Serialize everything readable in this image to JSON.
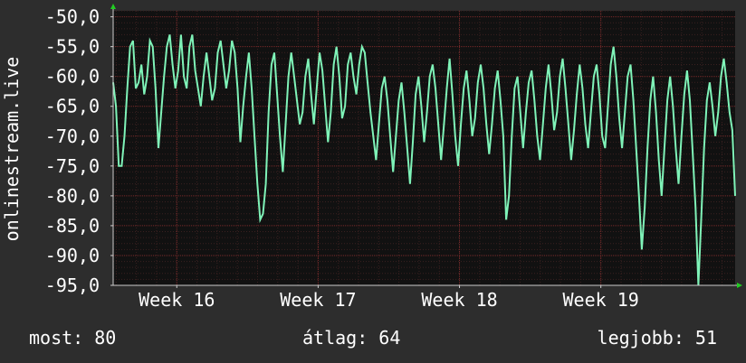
{
  "chart_data": {
    "type": "line",
    "ylabel": "onlinestream.live",
    "ylim": [
      -95,
      -49
    ],
    "y_ticks": [
      -50,
      -55,
      -60,
      -65,
      -70,
      -75,
      -80,
      -85,
      -90,
      -95
    ],
    "y_tick_labels": [
      "-50,0",
      "-55,0",
      "-60,0",
      "-65,0",
      "-70,0",
      "-75,0",
      "-80,0",
      "-85,0",
      "-90,0",
      "-95,0"
    ],
    "x_range_weeks": [
      15.55,
      19.95
    ],
    "x_ticks": [
      16,
      17,
      18,
      19
    ],
    "x_tick_labels": [
      "Week 16",
      "Week 17",
      "Week 18",
      "Week 19"
    ],
    "grid": true,
    "line_color": "#7ff3b8",
    "grid_color": "#7a2a2a",
    "plot_background": "#111111",
    "series": [
      {
        "values": [
          [
            15.55,
            -61
          ],
          [
            15.57,
            -65
          ],
          [
            15.59,
            -75
          ],
          [
            15.61,
            -75
          ],
          [
            15.63,
            -70
          ],
          [
            15.65,
            -62
          ],
          [
            15.67,
            -55
          ],
          [
            15.69,
            -54
          ],
          [
            15.71,
            -62
          ],
          [
            15.73,
            -61
          ],
          [
            15.75,
            -58
          ],
          [
            15.77,
            -63
          ],
          [
            15.79,
            -60
          ],
          [
            15.81,
            -54
          ],
          [
            15.83,
            -55
          ],
          [
            15.85,
            -62
          ],
          [
            15.87,
            -72
          ],
          [
            15.89,
            -66
          ],
          [
            15.91,
            -60
          ],
          [
            15.93,
            -55
          ],
          [
            15.95,
            -53
          ],
          [
            15.97,
            -58
          ],
          [
            15.99,
            -62
          ],
          [
            16.01,
            -59
          ],
          [
            16.03,
            -53
          ],
          [
            16.05,
            -60
          ],
          [
            16.07,
            -62
          ],
          [
            16.09,
            -55
          ],
          [
            16.11,
            -53
          ],
          [
            16.13,
            -59
          ],
          [
            16.15,
            -62
          ],
          [
            16.17,
            -65
          ],
          [
            16.19,
            -60
          ],
          [
            16.21,
            -56
          ],
          [
            16.23,
            -60
          ],
          [
            16.25,
            -64
          ],
          [
            16.27,
            -62
          ],
          [
            16.29,
            -56
          ],
          [
            16.31,
            -54
          ],
          [
            16.33,
            -58
          ],
          [
            16.35,
            -62
          ],
          [
            16.37,
            -59
          ],
          [
            16.39,
            -54
          ],
          [
            16.41,
            -56
          ],
          [
            16.43,
            -62
          ],
          [
            16.45,
            -71
          ],
          [
            16.47,
            -65
          ],
          [
            16.49,
            -60
          ],
          [
            16.51,
            -56
          ],
          [
            16.53,
            -62
          ],
          [
            16.55,
            -70
          ],
          [
            16.57,
            -78
          ],
          [
            16.59,
            -84
          ],
          [
            16.61,
            -83
          ],
          [
            16.63,
            -78
          ],
          [
            16.65,
            -66
          ],
          [
            16.67,
            -58
          ],
          [
            16.69,
            -56
          ],
          [
            16.71,
            -63
          ],
          [
            16.73,
            -70
          ],
          [
            16.75,
            -76
          ],
          [
            16.77,
            -68
          ],
          [
            16.79,
            -60
          ],
          [
            16.81,
            -56
          ],
          [
            16.83,
            -60
          ],
          [
            16.85,
            -64
          ],
          [
            16.87,
            -68
          ],
          [
            16.89,
            -66
          ],
          [
            16.91,
            -60
          ],
          [
            16.93,
            -57
          ],
          [
            16.95,
            -63
          ],
          [
            16.97,
            -68
          ],
          [
            16.99,
            -62
          ],
          [
            17.01,
            -56
          ],
          [
            17.03,
            -59
          ],
          [
            17.05,
            -65
          ],
          [
            17.07,
            -71
          ],
          [
            17.09,
            -66
          ],
          [
            17.11,
            -58
          ],
          [
            17.13,
            -55
          ],
          [
            17.15,
            -60
          ],
          [
            17.17,
            -67
          ],
          [
            17.19,
            -65
          ],
          [
            17.21,
            -58
          ],
          [
            17.23,
            -56
          ],
          [
            17.25,
            -60
          ],
          [
            17.27,
            -63
          ],
          [
            17.29,
            -58
          ],
          [
            17.31,
            -55
          ],
          [
            17.33,
            -56
          ],
          [
            17.35,
            -61
          ],
          [
            17.37,
            -66
          ],
          [
            17.39,
            -70
          ],
          [
            17.41,
            -74
          ],
          [
            17.43,
            -68
          ],
          [
            17.45,
            -62
          ],
          [
            17.47,
            -60
          ],
          [
            17.49,
            -64
          ],
          [
            17.51,
            -70
          ],
          [
            17.53,
            -76
          ],
          [
            17.55,
            -70
          ],
          [
            17.57,
            -64
          ],
          [
            17.59,
            -61
          ],
          [
            17.61,
            -66
          ],
          [
            17.63,
            -72
          ],
          [
            17.65,
            -78
          ],
          [
            17.67,
            -71
          ],
          [
            17.69,
            -63
          ],
          [
            17.71,
            -60
          ],
          [
            17.73,
            -65
          ],
          [
            17.75,
            -71
          ],
          [
            17.77,
            -66
          ],
          [
            17.79,
            -60
          ],
          [
            17.81,
            -58
          ],
          [
            17.83,
            -62
          ],
          [
            17.85,
            -68
          ],
          [
            17.87,
            -74
          ],
          [
            17.89,
            -68
          ],
          [
            17.91,
            -62
          ],
          [
            17.93,
            -57
          ],
          [
            17.95,
            -63
          ],
          [
            17.97,
            -70
          ],
          [
            17.99,
            -75
          ],
          [
            18.01,
            -68
          ],
          [
            18.03,
            -62
          ],
          [
            18.05,
            -59
          ],
          [
            18.07,
            -64
          ],
          [
            18.09,
            -70
          ],
          [
            18.11,
            -67
          ],
          [
            18.13,
            -61
          ],
          [
            18.15,
            -58
          ],
          [
            18.17,
            -62
          ],
          [
            18.19,
            -68
          ],
          [
            18.21,
            -73
          ],
          [
            18.23,
            -68
          ],
          [
            18.25,
            -62
          ],
          [
            18.27,
            -59
          ],
          [
            18.29,
            -64
          ],
          [
            18.31,
            -70
          ],
          [
            18.33,
            -84
          ],
          [
            18.35,
            -80
          ],
          [
            18.37,
            -70
          ],
          [
            18.39,
            -62
          ],
          [
            18.41,
            -60
          ],
          [
            18.43,
            -66
          ],
          [
            18.45,
            -72
          ],
          [
            18.47,
            -66
          ],
          [
            18.49,
            -61
          ],
          [
            18.51,
            -59
          ],
          [
            18.53,
            -64
          ],
          [
            18.55,
            -70
          ],
          [
            18.57,
            -74
          ],
          [
            18.59,
            -68
          ],
          [
            18.61,
            -62
          ],
          [
            18.63,
            -58
          ],
          [
            18.65,
            -63
          ],
          [
            18.67,
            -69
          ],
          [
            18.69,
            -66
          ],
          [
            18.71,
            -60
          ],
          [
            18.73,
            -57
          ],
          [
            18.75,
            -62
          ],
          [
            18.77,
            -68
          ],
          [
            18.79,
            -74
          ],
          [
            18.81,
            -69
          ],
          [
            18.83,
            -63
          ],
          [
            18.85,
            -58
          ],
          [
            18.87,
            -62
          ],
          [
            18.89,
            -68
          ],
          [
            18.91,
            -72
          ],
          [
            18.93,
            -66
          ],
          [
            18.95,
            -60
          ],
          [
            18.97,
            -58
          ],
          [
            18.99,
            -63
          ],
          [
            19.01,
            -70
          ],
          [
            19.03,
            -72
          ],
          [
            19.05,
            -65
          ],
          [
            19.07,
            -58
          ],
          [
            19.09,
            -55
          ],
          [
            19.11,
            -60
          ],
          [
            19.13,
            -67
          ],
          [
            19.15,
            -72
          ],
          [
            19.17,
            -66
          ],
          [
            19.19,
            -60
          ],
          [
            19.21,
            -58
          ],
          [
            19.23,
            -64
          ],
          [
            19.25,
            -72
          ],
          [
            19.27,
            -80
          ],
          [
            19.29,
            -89
          ],
          [
            19.31,
            -82
          ],
          [
            19.33,
            -72
          ],
          [
            19.35,
            -64
          ],
          [
            19.37,
            -60
          ],
          [
            19.39,
            -66
          ],
          [
            19.41,
            -74
          ],
          [
            19.43,
            -80
          ],
          [
            19.45,
            -72
          ],
          [
            19.47,
            -64
          ],
          [
            19.49,
            -60
          ],
          [
            19.51,
            -65
          ],
          [
            19.53,
            -72
          ],
          [
            19.55,
            -78
          ],
          [
            19.57,
            -70
          ],
          [
            19.59,
            -63
          ],
          [
            19.61,
            -59
          ],
          [
            19.63,
            -64
          ],
          [
            19.65,
            -73
          ],
          [
            19.67,
            -82
          ],
          [
            19.69,
            -95
          ],
          [
            19.71,
            -84
          ],
          [
            19.73,
            -72
          ],
          [
            19.75,
            -64
          ],
          [
            19.77,
            -61
          ],
          [
            19.79,
            -65
          ],
          [
            19.81,
            -70
          ],
          [
            19.83,
            -66
          ],
          [
            19.85,
            -60
          ],
          [
            19.87,
            -57
          ],
          [
            19.89,
            -61
          ],
          [
            19.91,
            -66
          ],
          [
            19.93,
            -69
          ],
          [
            19.95,
            -80
          ]
        ]
      }
    ]
  },
  "legend": {
    "current": "most: 80",
    "average": "átlag: 64",
    "best": "legjobb: 51"
  }
}
